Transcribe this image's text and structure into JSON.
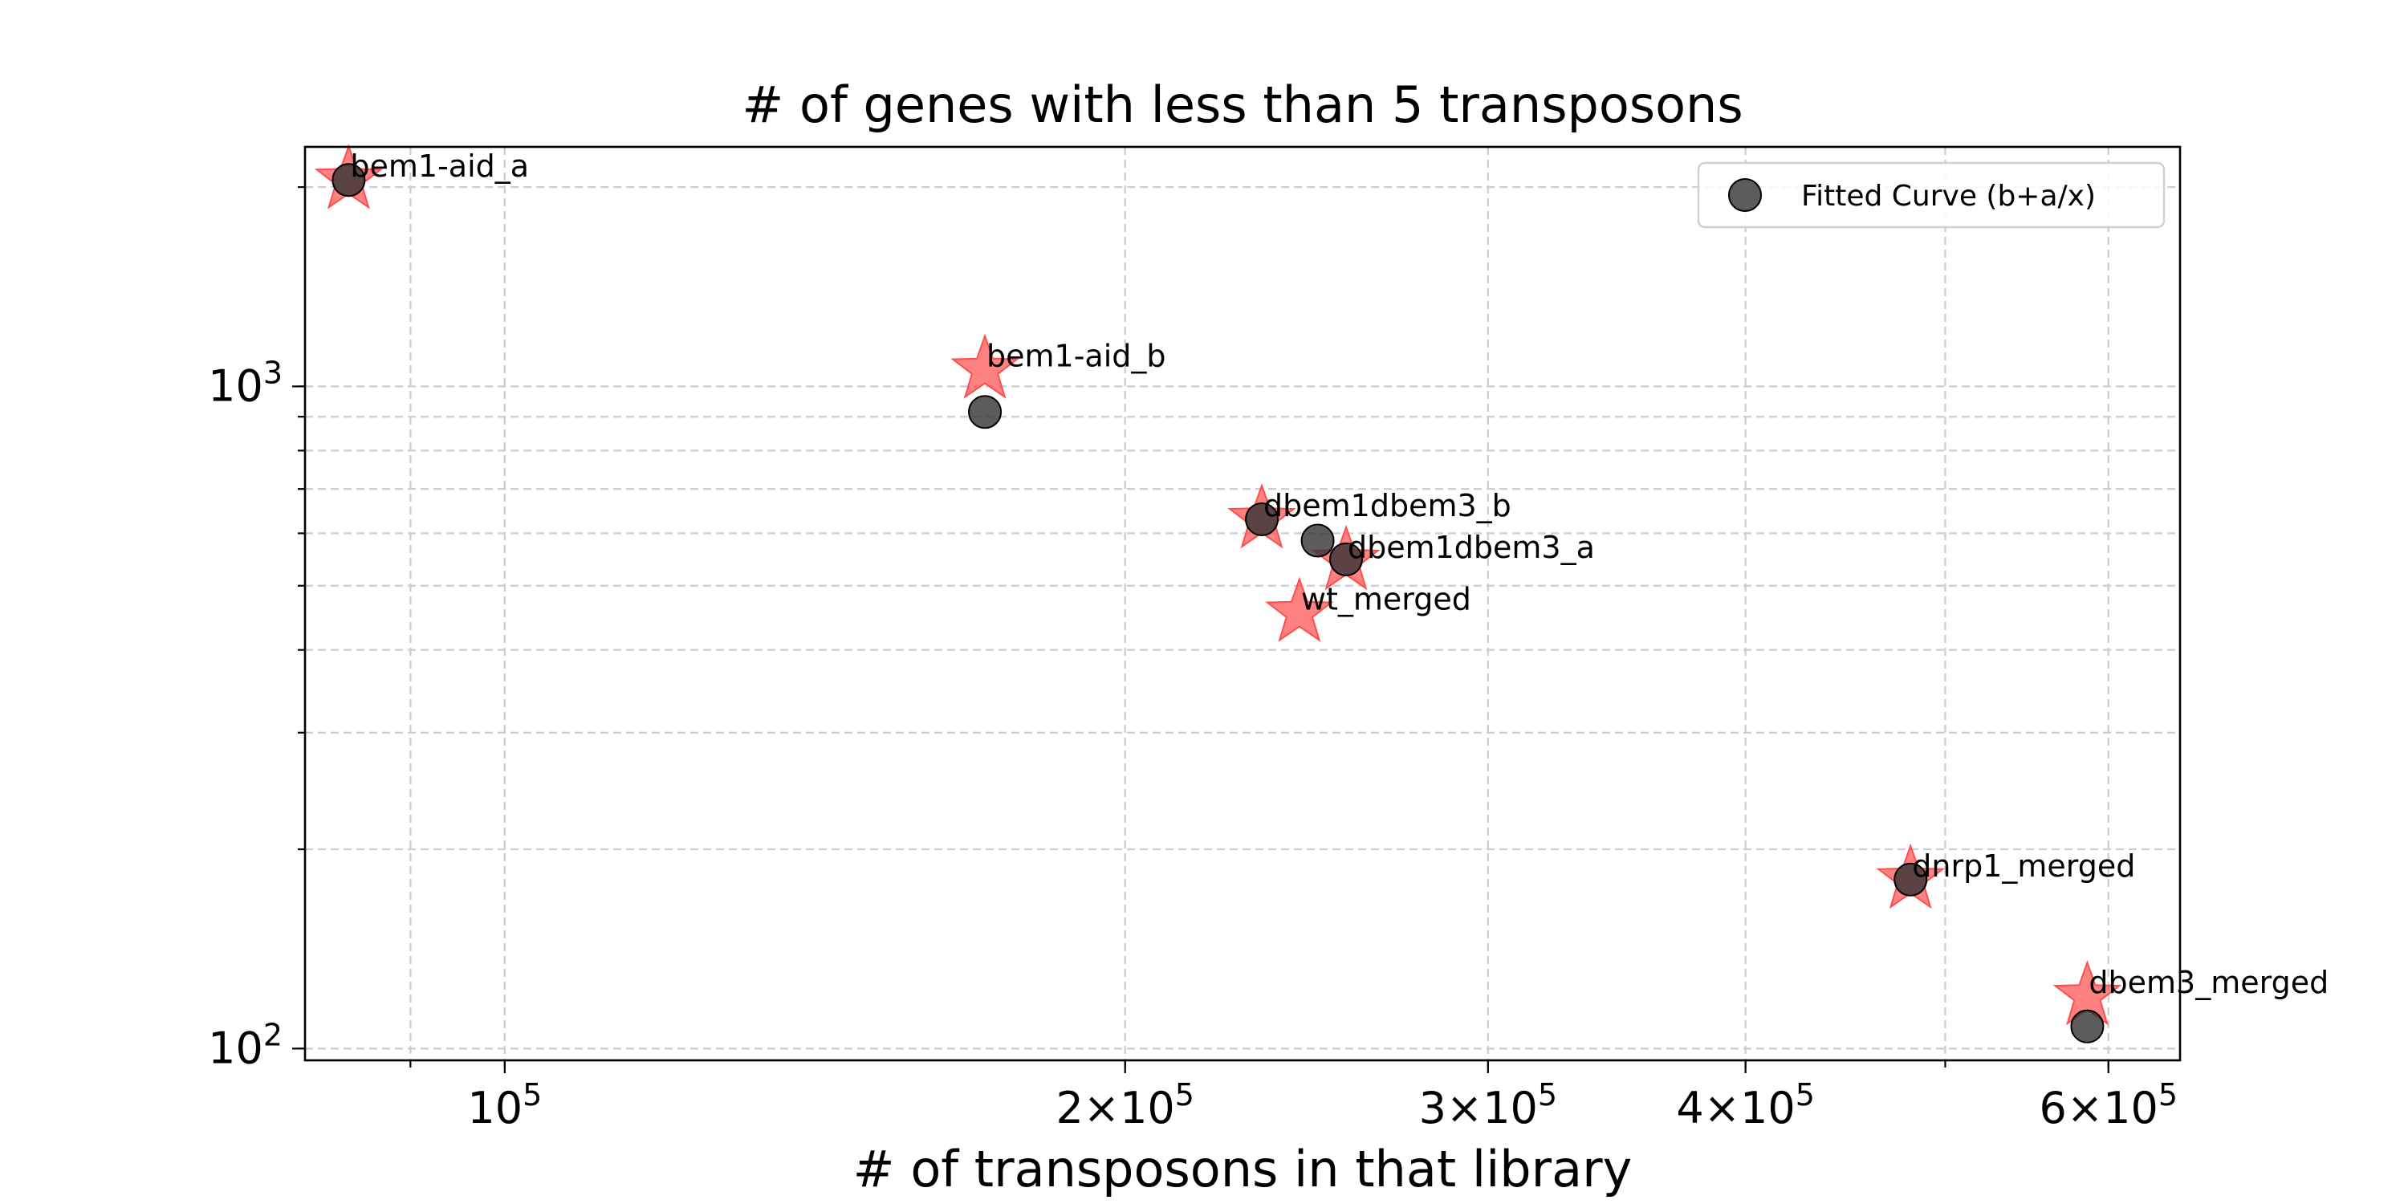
{
  "chart_data": {
    "type": "scatter",
    "title": "# of genes with less than 5 transposons",
    "xlabel": "# of transposons in that library",
    "ylabel": "",
    "xscale": "log",
    "yscale": "log",
    "xlim": [
      80000,
      650000
    ],
    "ylim": [
      96,
      2300
    ],
    "x_ticks": [
      {
        "value": 100000,
        "base": "10",
        "exp": "5",
        "coef": ""
      },
      {
        "value": 200000,
        "base": "10",
        "exp": "5",
        "coef": "2"
      },
      {
        "value": 300000,
        "base": "10",
        "exp": "5",
        "coef": "3"
      },
      {
        "value": 400000,
        "base": "10",
        "exp": "5",
        "coef": "4"
      },
      {
        "value": 600000,
        "base": "10",
        "exp": "5",
        "coef": "6"
      }
    ],
    "y_ticks": [
      {
        "value": 100,
        "base": "10",
        "exp": "2"
      },
      {
        "value": 1000,
        "base": "10",
        "exp": "3"
      }
    ],
    "grid": true,
    "legend_position": "top-right",
    "series": [
      {
        "kind": "observed",
        "marker": "star",
        "color": "#ff4d4d",
        "points": [
          {
            "label": "bem1-aid_a",
            "x": 84000,
            "y": 2050
          },
          {
            "label": "bem1-aid_b",
            "x": 171000,
            "y": 1060
          },
          {
            "label": "dbem1dbem3_b",
            "x": 233000,
            "y": 630
          },
          {
            "label": "dbem1dbem3_a",
            "x": 256000,
            "y": 545
          },
          {
            "label": "wt_merged",
            "x": 243000,
            "y": 455
          },
          {
            "label": "dnrp1_merged",
            "x": 481000,
            "y": 180
          },
          {
            "label": "dbem3_merged",
            "x": 586000,
            "y": 120
          }
        ]
      },
      {
        "name": "Fitted Curve (b+a/x)",
        "kind": "fitted",
        "marker": "circle",
        "color": "#333333",
        "points": [
          {
            "x": 84000,
            "y": 2050
          },
          {
            "x": 171000,
            "y": 915
          },
          {
            "x": 233000,
            "y": 630
          },
          {
            "x": 248000,
            "y": 585
          },
          {
            "x": 256000,
            "y": 548
          },
          {
            "x": 481000,
            "y": 180
          },
          {
            "x": 586000,
            "y": 108
          }
        ]
      }
    ]
  }
}
